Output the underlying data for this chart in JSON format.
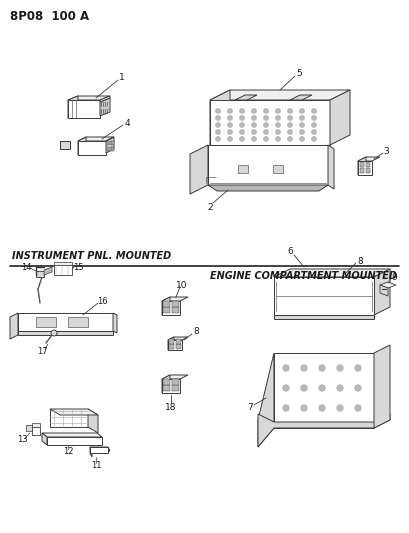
{
  "title": "8P08  100 A",
  "bg_color": "#ffffff",
  "line_color": "#3a3a3a",
  "text_color": "#1a1a1a",
  "section_label_top": "INSTRUMENT PNL. MOUNTED",
  "section_label_bottom": "ENGINE COMPARTMENT MOUNTED",
  "face_light": "#f0f0f0",
  "face_mid": "#d8d8d8",
  "face_dark": "#b8b8b8",
  "face_white": "#ffffff"
}
